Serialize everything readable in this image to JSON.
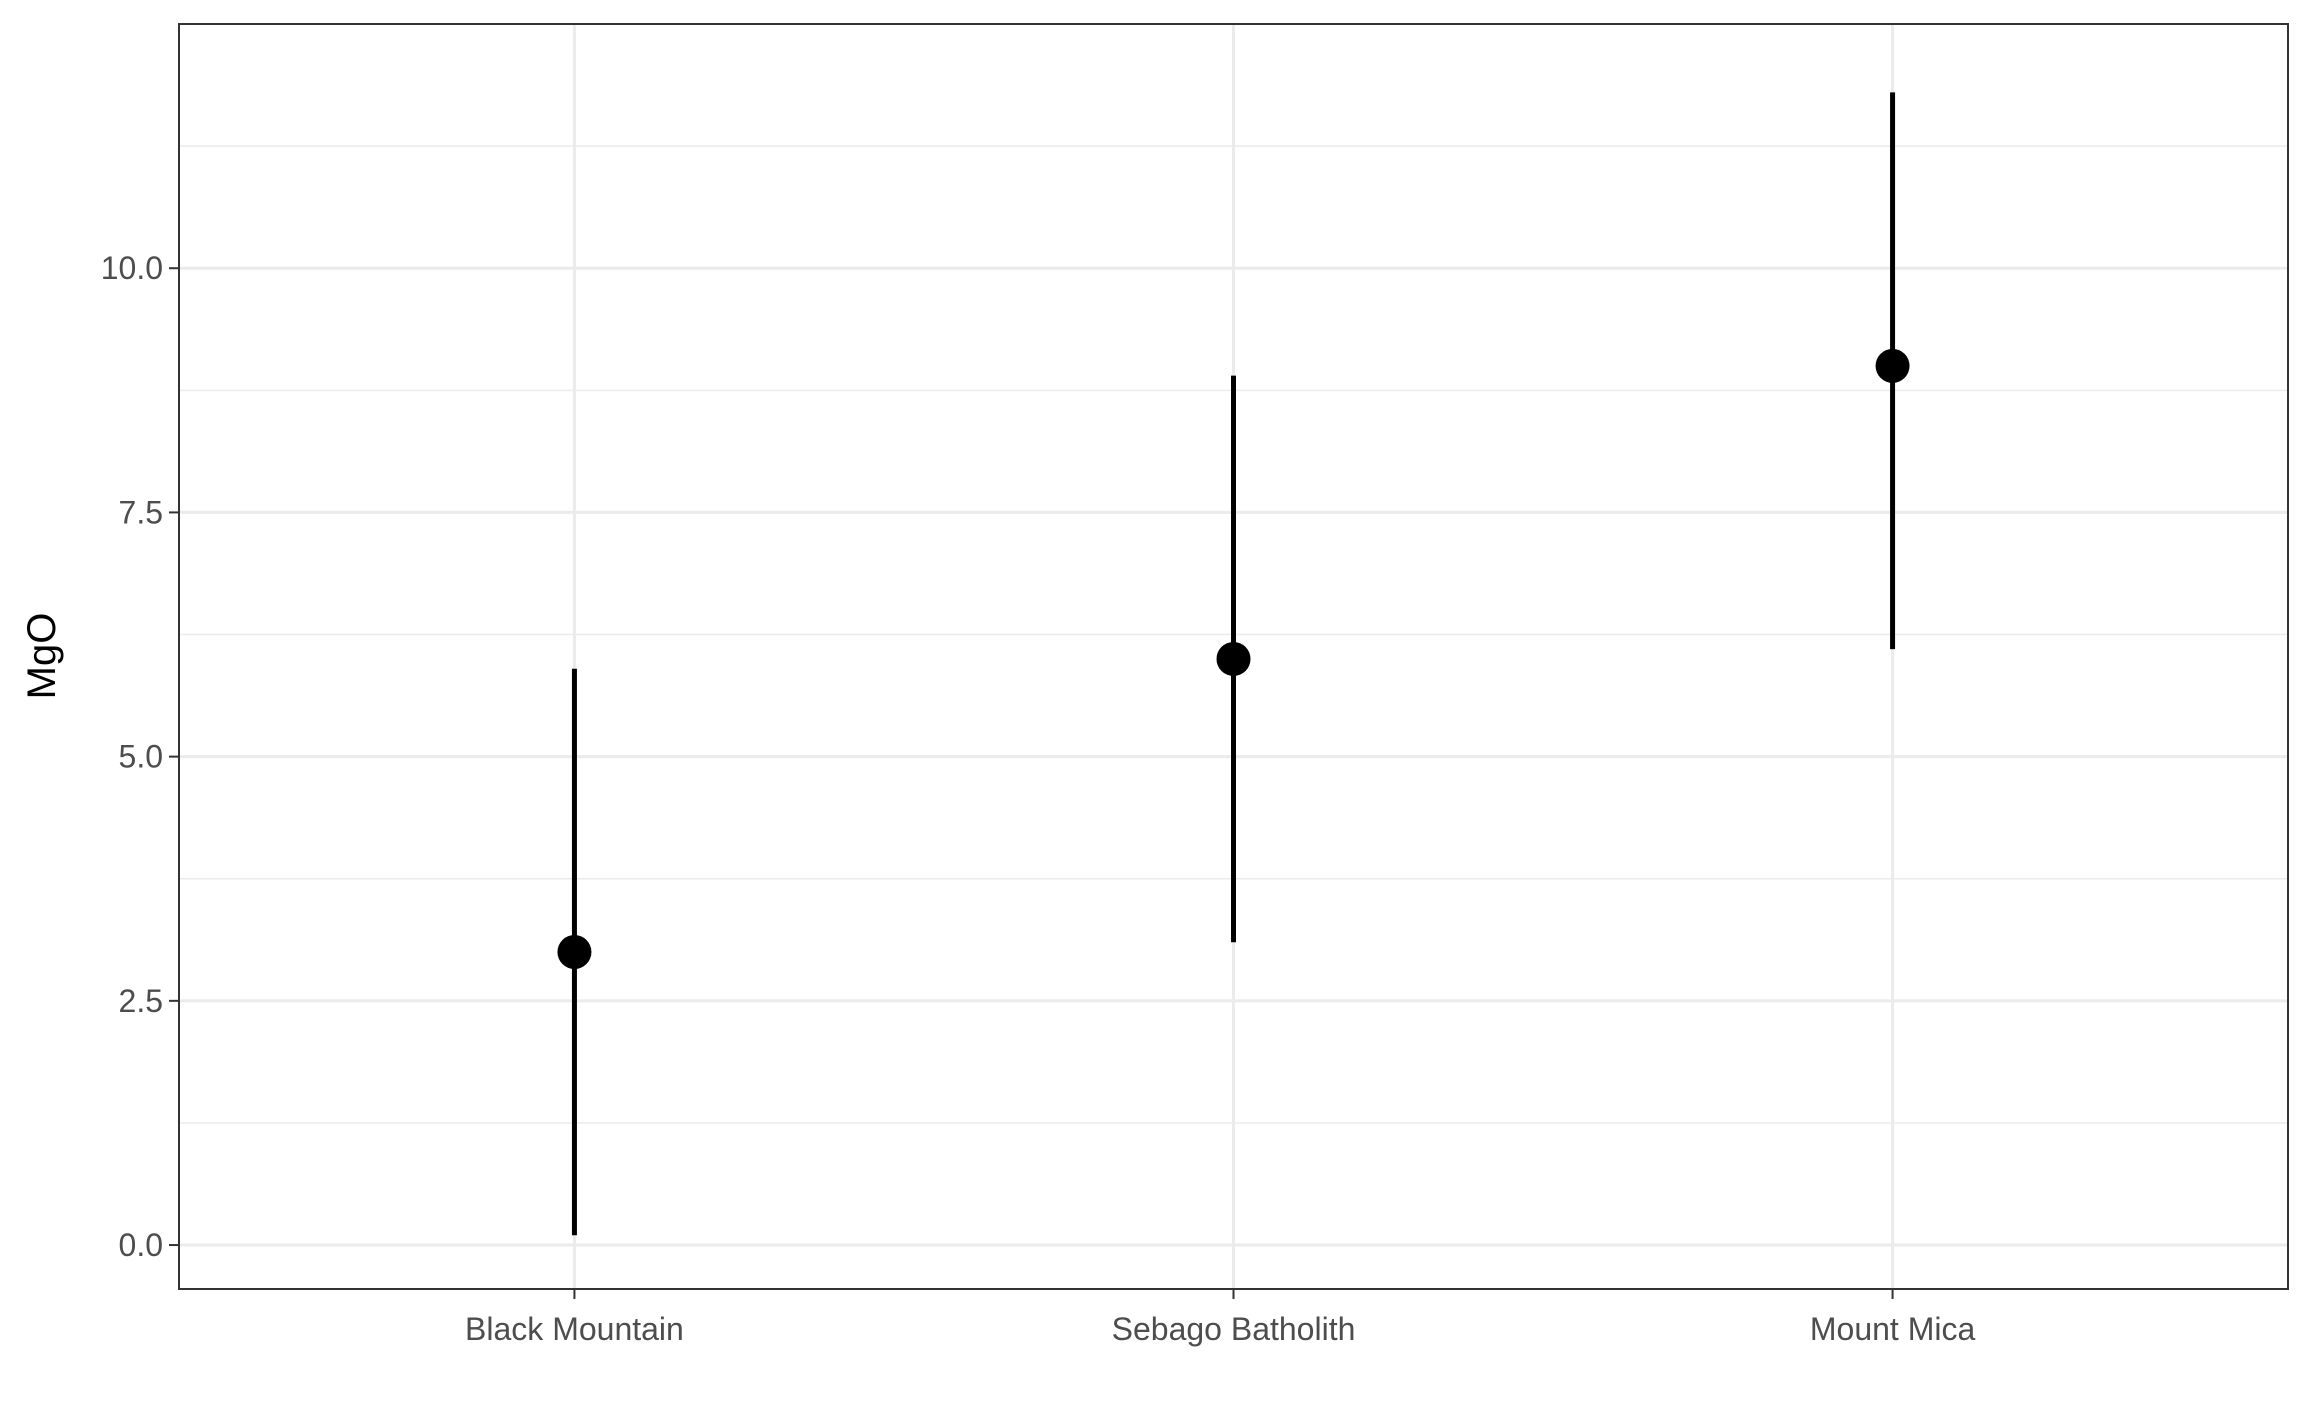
{
  "chart_data": {
    "type": "scatter",
    "subtype": "pointrange",
    "title": "",
    "xlabel": "",
    "ylabel": "MgO",
    "categories": [
      "Black Mountain",
      "Sebago Batholith",
      "Mount Mica"
    ],
    "values": [
      3.0,
      6.0,
      9.0
    ],
    "lower": [
      0.1,
      3.1,
      6.1
    ],
    "upper": [
      5.9,
      8.9,
      11.8
    ],
    "ylim": [
      -0.45,
      12.5
    ],
    "yticks": [
      0.0,
      2.5,
      5.0,
      7.5,
      10.0
    ],
    "ytick_labels": [
      "0.0",
      "2.5",
      "5.0",
      "7.5",
      "10.0"
    ],
    "grid": true,
    "legend": "none",
    "colors": {
      "point": "#000000",
      "grid_major": "#ebebeb",
      "grid_minor": "#ebebeb",
      "panel_border": "#333333",
      "tick_text": "#4d4d4d"
    }
  }
}
